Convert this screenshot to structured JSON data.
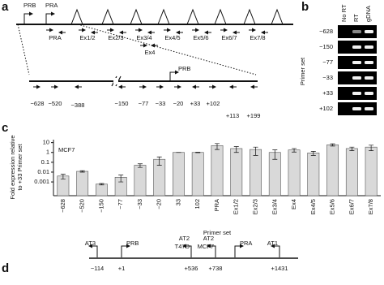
{
  "panel_a": {
    "letter": "a",
    "promoters": [
      "PRB",
      "PRA"
    ],
    "primers": [
      "PRA",
      "Ex1/2",
      "Ex2/3",
      "Ex3/4",
      "Ex4/5",
      "Ex5/6",
      "Ex6/7",
      "Ex7/8"
    ],
    "extra_primer": "Ex4",
    "zoom_promoter": "PRB",
    "positions": [
      "−628",
      "−520",
      "−388",
      "−150",
      "−77",
      "−33",
      "−20",
      "+33",
      "+102",
      "+113",
      "+199"
    ]
  },
  "panel_b": {
    "letter": "b",
    "columns": [
      "No RT",
      "RT",
      "gDNA"
    ],
    "rows": [
      "−628",
      "−150",
      "−77",
      "−33",
      "+33",
      "+102"
    ],
    "row_axis": "Primer set"
  },
  "chart_data": {
    "type": "bar",
    "panel_label": "c",
    "title": "MCF7",
    "categories": [
      "−628",
      "−520",
      "−150",
      "−77",
      "−33",
      "−20",
      "33",
      "102",
      "PRA",
      "Ex1/2",
      "Ex2/3",
      "Ex3/4",
      "Ex4",
      "Ex4/5",
      "Ex5/6",
      "Ex6/7",
      "Ex7/8"
    ],
    "values": [
      0.004,
      0.012,
      0.0006,
      0.003,
      0.05,
      0.2,
      1,
      1,
      5,
      2.5,
      2,
      1,
      1.8,
      0.9,
      6,
      2.5,
      3.5
    ],
    "errors": [
      0.002,
      0.002,
      0.0001,
      0.002,
      0.02,
      0.15,
      0,
      0.05,
      3,
      1.5,
      1.5,
      0.8,
      0.7,
      0.4,
      1.5,
      1,
      2
    ],
    "color": "#d9d9d9",
    "log_scale": true,
    "ylim": [
      4e-05,
      20
    ],
    "yticks": [
      10,
      1,
      0.1,
      0.01,
      0.001
    ],
    "xlabel": "Primer set",
    "ylabel": [
      "Fold expression relative",
      "to +33 Primer set"
    ]
  },
  "panel_d": {
    "letter": "d",
    "sites": [
      {
        "label": [
          "AT3"
        ],
        "position": "−114"
      },
      {
        "label": [
          "PRB"
        ],
        "position": "+1"
      },
      {
        "label": [
          "AT2",
          "T47D"
        ],
        "position": "+536"
      },
      {
        "label": [
          "AT2",
          "MCF7"
        ],
        "position": "+738"
      },
      {
        "label": [
          "PRA"
        ],
        "position": null
      },
      {
        "label": [
          "AT1"
        ],
        "position": "+1431"
      }
    ]
  }
}
